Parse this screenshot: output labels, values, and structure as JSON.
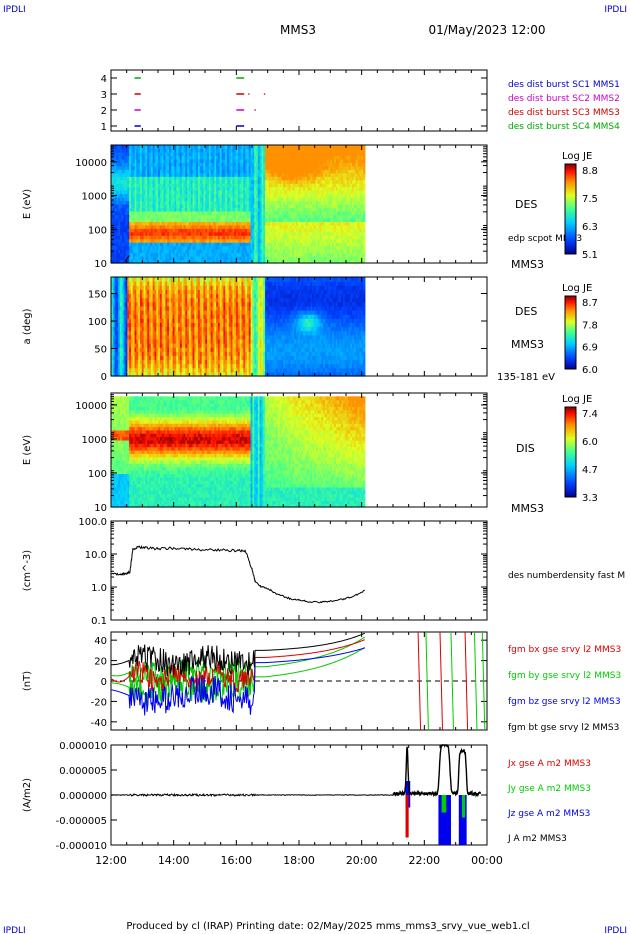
{
  "header": {
    "corner_left": "IPDLI",
    "corner_right": "IPDLI",
    "title": "MMS3",
    "datetime": "01/May/2023 12:00"
  },
  "footer": {
    "produced": "Produced by cl (IRAP)   Printing date: 02/May/2025   mms_mms3_srvy_vue_web1.cl",
    "corner_left": "IPDLI",
    "corner_right": "IPDLI"
  },
  "time_axis": {
    "ticks": [
      "12:00",
      "14:00",
      "16:00",
      "18:00",
      "20:00",
      "22:00",
      "00:00"
    ],
    "start_hour": 12,
    "end_hour": 24
  },
  "colors": {
    "mms1": "#0000cc",
    "mms2": "#cc00cc",
    "mms3": "#cc0000",
    "mms4": "#00aa00",
    "bx": "#dd0000",
    "by": "#00cc00",
    "bz": "#0000ee",
    "bt": "#000000"
  },
  "chart_data": [
    {
      "id": "burst",
      "type": "scatter",
      "yticks": [
        "1",
        "2",
        "3",
        "4"
      ],
      "labels": [
        "des dist burst SC1 MMS1",
        "des dist burst SC2 MMS2",
        "des dist burst SC3 MMS3",
        "des dist burst SC4 MMS4"
      ],
      "segments": [
        {
          "sc": 4,
          "t": [
            12.75,
            12.95
          ]
        },
        {
          "sc": 4,
          "t": [
            16.0,
            16.25
          ]
        },
        {
          "sc": 3,
          "t": [
            12.75,
            12.95
          ]
        },
        {
          "sc": 3,
          "t": [
            16.0,
            16.25
          ]
        },
        {
          "sc": 2,
          "t": [
            12.75,
            12.95
          ]
        },
        {
          "sc": 2,
          "t": [
            16.0,
            16.25
          ]
        },
        {
          "sc": 1,
          "t": [
            12.75,
            12.95
          ]
        },
        {
          "sc": 1,
          "t": [
            16.0,
            16.25
          ]
        }
      ]
    },
    {
      "id": "des_energy",
      "type": "heatmap",
      "ylabel": "E (eV)",
      "yticks": [
        "10",
        "100",
        "1000",
        "10000"
      ],
      "label_main": "DES",
      "label_sc": "MMS3",
      "overlay_label": "edp scpot MMS3",
      "colorbar": {
        "title": "Log JE",
        "ticks": [
          "8.8",
          "7.5",
          "6.3",
          "5.1"
        ]
      }
    },
    {
      "id": "des_pitch",
      "type": "heatmap",
      "ylabel": "a (deg)",
      "yticks": [
        "0",
        "50",
        "100",
        "150"
      ],
      "label_main": "DES",
      "label_sc": "MMS3",
      "energy_range": "135-181 eV",
      "colorbar": {
        "title": "Log JE",
        "ticks": [
          "8.7",
          "7.8",
          "6.9",
          "6.0"
        ]
      }
    },
    {
      "id": "dis_energy",
      "type": "heatmap",
      "ylabel": "E (eV)",
      "yticks": [
        "10",
        "100",
        "1000",
        "10000"
      ],
      "label_main": "DIS",
      "label_sc": "MMS3",
      "colorbar": {
        "title": "Log JE",
        "ticks": [
          "7.4",
          "6.0",
          "4.7",
          "3.3"
        ]
      }
    },
    {
      "id": "density",
      "type": "line",
      "ylabel": "(cm^-3)",
      "yticks": [
        "0.1",
        "1.0",
        "10.0",
        "100.0"
      ],
      "ylim": [
        0.1,
        100
      ],
      "series_label": "des numberdensity fast M",
      "x": [
        12.0,
        12.3,
        12.5,
        12.6,
        12.7,
        12.9,
        13.2,
        13.6,
        14.0,
        14.5,
        15.0,
        15.5,
        16.0,
        16.3,
        16.5,
        16.6,
        16.8,
        17.0,
        17.3,
        17.7,
        18.0,
        18.3,
        18.7,
        19.0,
        19.4,
        19.8,
        20.1
      ],
      "y": [
        2.5,
        2.4,
        2.6,
        2.8,
        14,
        16,
        15,
        14.5,
        15,
        14,
        13.5,
        13.2,
        12.5,
        12,
        3.5,
        1.5,
        1.0,
        0.9,
        0.6,
        0.45,
        0.4,
        0.36,
        0.34,
        0.38,
        0.42,
        0.55,
        0.8
      ]
    },
    {
      "id": "magnetic_field",
      "type": "line",
      "ylabel": "(nT)",
      "yticks": [
        "-40",
        "-20",
        "0",
        "20",
        "40"
      ],
      "ylim": [
        -48,
        48
      ],
      "series": [
        {
          "name": "fgm bx gse srvy l2 MMS3",
          "color": "#dd0000"
        },
        {
          "name": "fgm by gse srvy l2 MMS3",
          "color": "#00cc00"
        },
        {
          "name": "fgm bz gse srvy l2 MMS3",
          "color": "#0000ee"
        },
        {
          "name": "fgm bt gse srvy l2 MMS3",
          "color": "#000000"
        }
      ]
    },
    {
      "id": "current_density",
      "type": "line",
      "ylabel": "(A/m2)",
      "yticks": [
        "-0.000010",
        "-0.000005",
        "0.000000",
        "0.000005",
        "0.000010"
      ],
      "ylim": [
        -1e-05,
        1e-05
      ],
      "series": [
        {
          "name": "Jx gse A m2 MMS3",
          "color": "#dd0000"
        },
        {
          "name": "Jy gse A m2 MMS3",
          "color": "#00cc00"
        },
        {
          "name": "Jz gse A m2 MMS3",
          "color": "#0000ee"
        },
        {
          "name": "J A m2 MMS3",
          "color": "#000000"
        }
      ]
    }
  ]
}
